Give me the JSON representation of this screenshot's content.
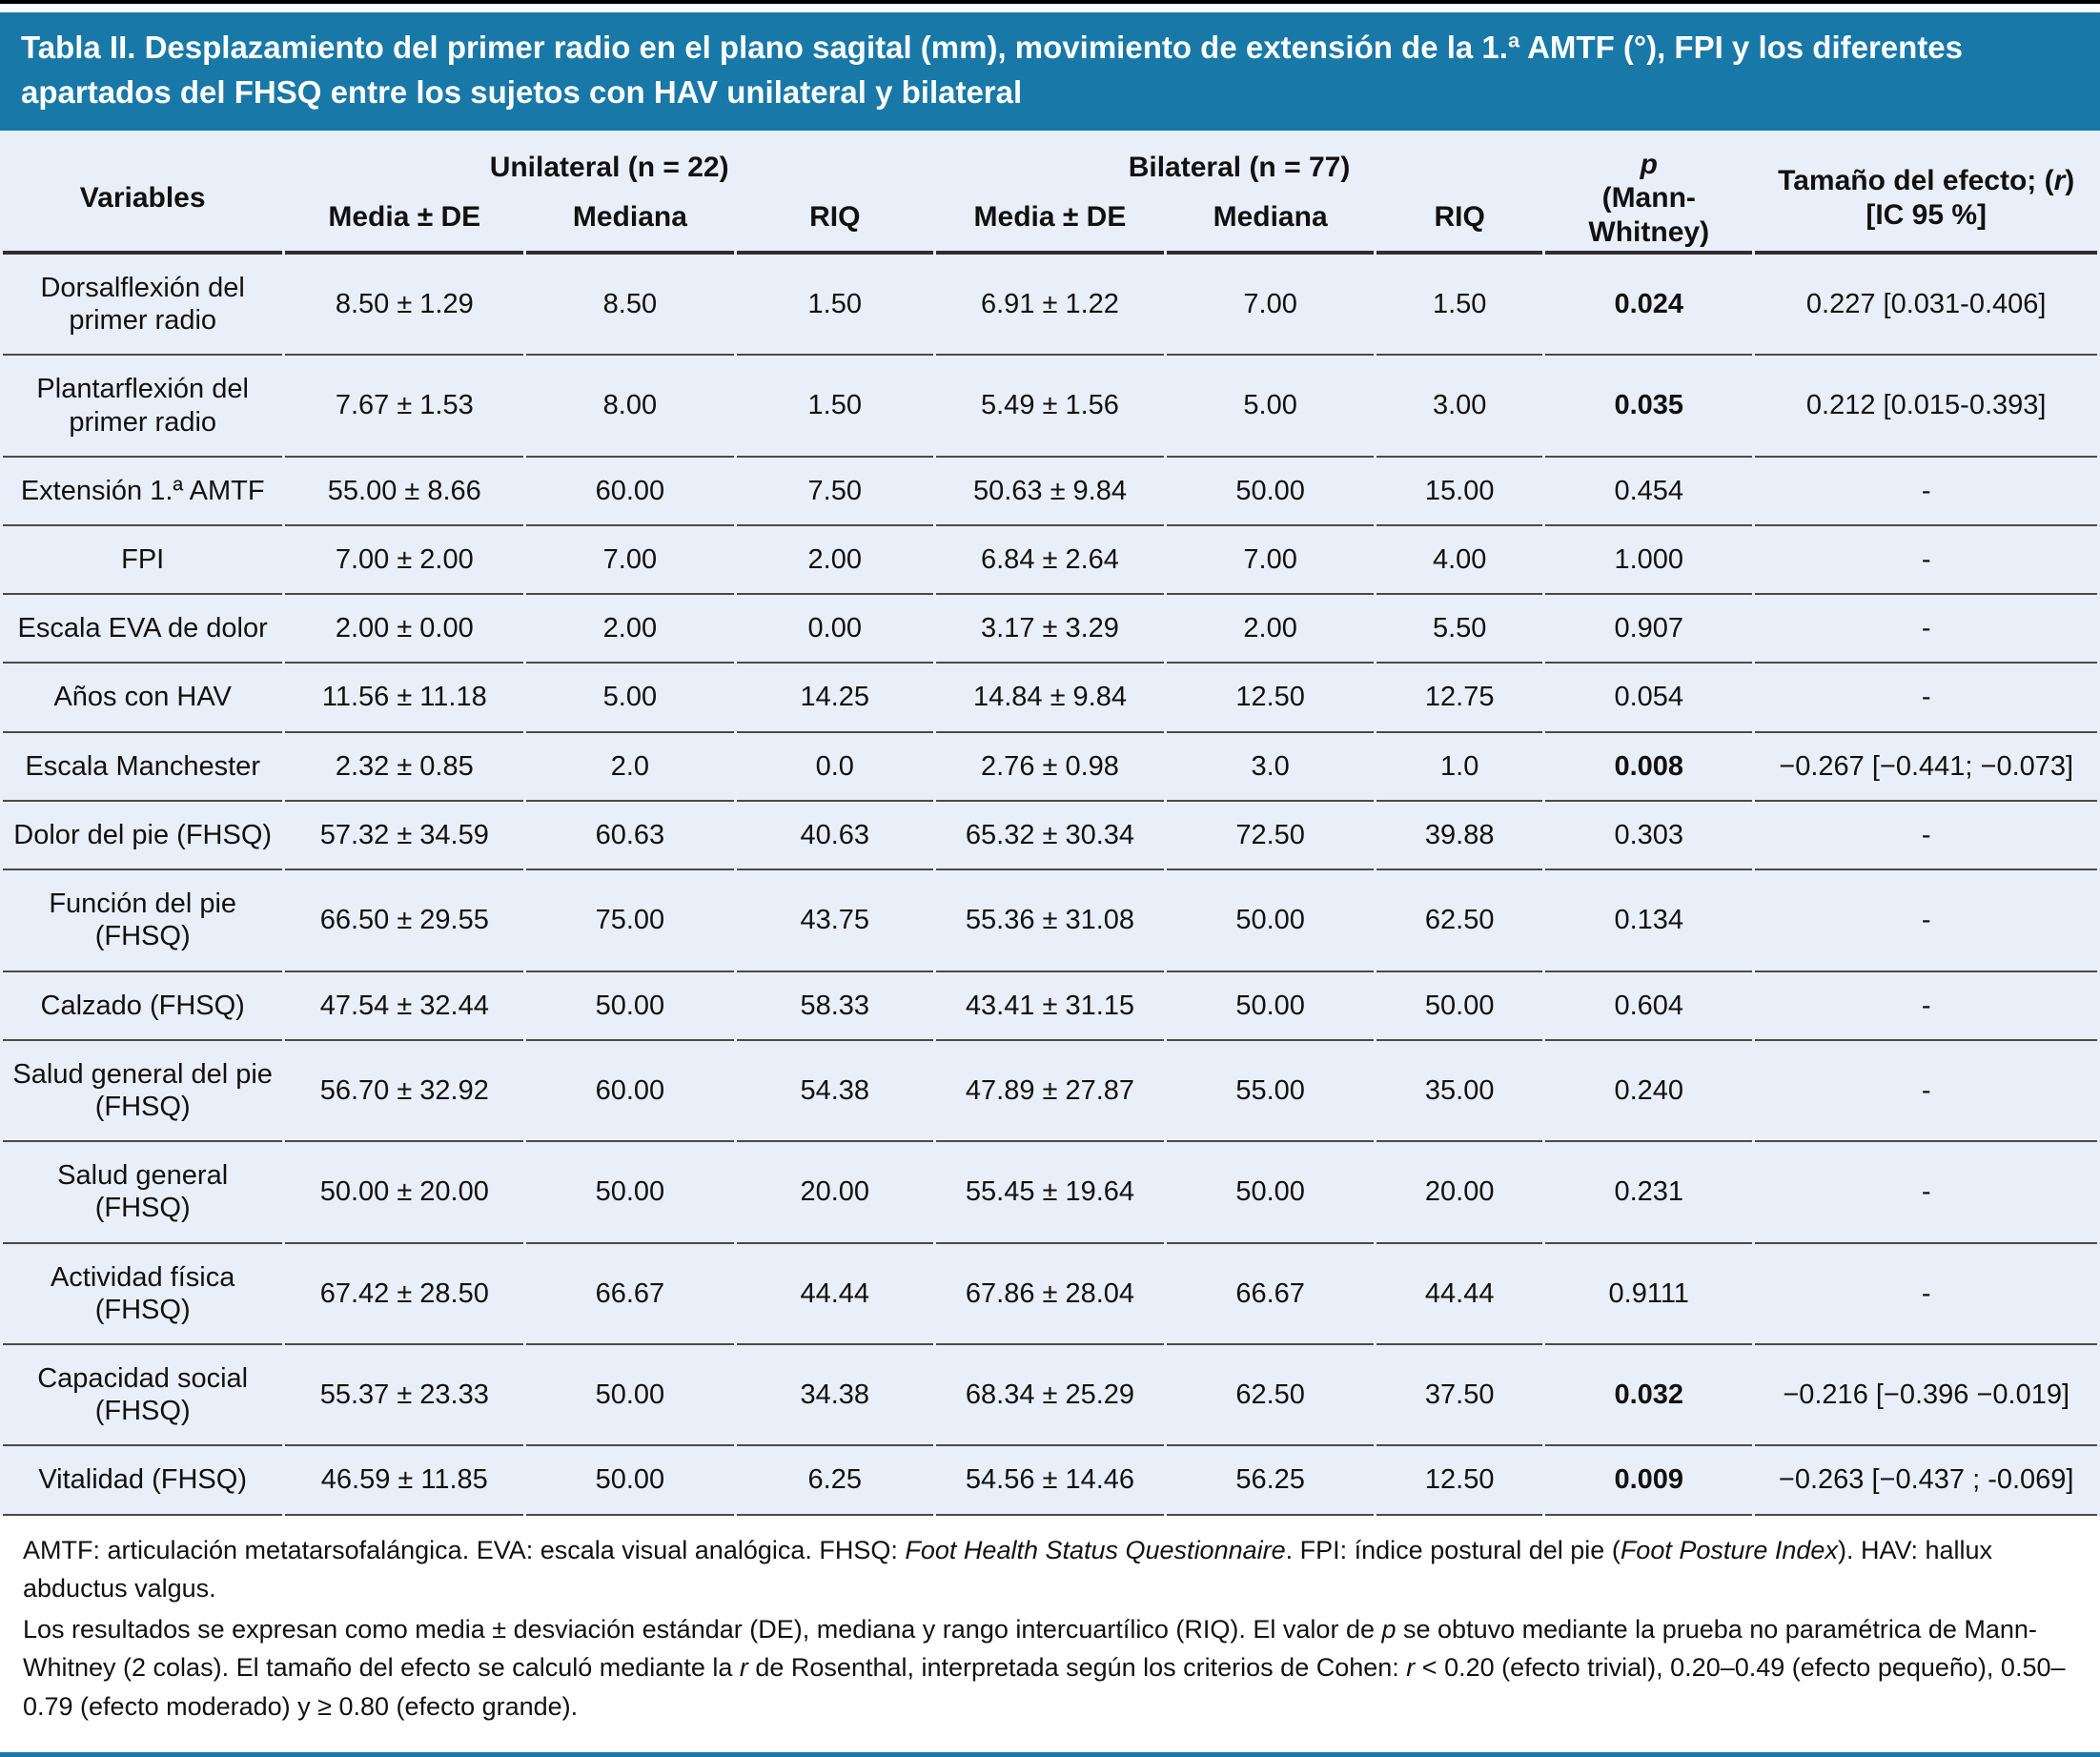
{
  "title": "Tabla II. Desplazamiento del primer radio en el plano sagital (mm), movimiento de extensión de la 1.ª AMTF (°), FPI y los diferentes apartados del FHSQ entre los sujetos con HAV unilateral y bilateral",
  "colors": {
    "header_bg": "#1878A8",
    "table_bg": "#E9EFF8",
    "rule": "#4a4a4a"
  },
  "table": {
    "headers": {
      "variables": "Variables",
      "unilateral_group": "Unilateral (n = 22)",
      "bilateral_group": "Bilateral (n = 77)",
      "p_symbol": "p",
      "p_sub": "(Mann-Whitney)",
      "effect_prefix": "Tamaño del efecto; (",
      "effect_r": "r",
      "effect_suffix": ")",
      "effect_sub": "[IC 95 %]"
    },
    "sub_headers": [
      "Media ± DE",
      "Mediana",
      "RIQ",
      "Media ± DE",
      "Mediana",
      "RIQ"
    ],
    "rows": [
      {
        "variable": "Dorsalflexión del primer radio",
        "u_media": "8.50 ± 1.29",
        "u_mediana": "8.50",
        "u_riq": "1.50",
        "b_media": "6.91 ± 1.22",
        "b_mediana": "7.00",
        "b_riq": "1.50",
        "p": "0.024",
        "p_bold": true,
        "effect": "0.227 [0.031-0.406]"
      },
      {
        "variable": "Plantarflexión del primer radio",
        "u_media": "7.67 ± 1.53",
        "u_mediana": "8.00",
        "u_riq": "1.50",
        "b_media": "5.49 ± 1.56",
        "b_mediana": "5.00",
        "b_riq": "3.00",
        "p": "0.035",
        "p_bold": true,
        "effect": "0.212 [0.015-0.393]"
      },
      {
        "variable": "Extensión 1.ª AMTF",
        "u_media": "55.00 ± 8.66",
        "u_mediana": "60.00",
        "u_riq": "7.50",
        "b_media": "50.63 ± 9.84",
        "b_mediana": "50.00",
        "b_riq": "15.00",
        "p": "0.454",
        "p_bold": false,
        "effect": "-"
      },
      {
        "variable": "FPI",
        "u_media": "7.00 ± 2.00",
        "u_mediana": "7.00",
        "u_riq": "2.00",
        "b_media": "6.84 ± 2.64",
        "b_mediana": "7.00",
        "b_riq": "4.00",
        "p": "1.000",
        "p_bold": false,
        "effect": "-"
      },
      {
        "variable": "Escala EVA de dolor",
        "u_media": "2.00 ± 0.00",
        "u_mediana": "2.00",
        "u_riq": "0.00",
        "b_media": "3.17 ± 3.29",
        "b_mediana": "2.00",
        "b_riq": "5.50",
        "p": "0.907",
        "p_bold": false,
        "effect": "-"
      },
      {
        "variable": "Años con HAV",
        "u_media": "11.56 ± 11.18",
        "u_mediana": "5.00",
        "u_riq": "14.25",
        "b_media": "14.84 ± 9.84",
        "b_mediana": "12.50",
        "b_riq": "12.75",
        "p": "0.054",
        "p_bold": false,
        "effect": "-"
      },
      {
        "variable": "Escala Manchester",
        "u_media": "2.32 ± 0.85",
        "u_mediana": "2.0",
        "u_riq": "0.0",
        "b_media": "2.76 ± 0.98",
        "b_mediana": "3.0",
        "b_riq": "1.0",
        "p": "0.008",
        "p_bold": true,
        "effect": "−0.267 [−0.441; −0.073]"
      },
      {
        "variable": "Dolor del pie (FHSQ)",
        "u_media": "57.32 ± 34.59",
        "u_mediana": "60.63",
        "u_riq": "40.63",
        "b_media": "65.32 ± 30.34",
        "b_mediana": "72.50",
        "b_riq": "39.88",
        "p": "0.303",
        "p_bold": false,
        "effect": "-"
      },
      {
        "variable": "Función del pie (FHSQ)",
        "u_media": "66.50 ± 29.55",
        "u_mediana": "75.00",
        "u_riq": "43.75",
        "b_media": "55.36 ± 31.08",
        "b_mediana": "50.00",
        "b_riq": "62.50",
        "p": "0.134",
        "p_bold": false,
        "effect": "-"
      },
      {
        "variable": "Calzado (FHSQ)",
        "u_media": "47.54 ± 32.44",
        "u_mediana": "50.00",
        "u_riq": "58.33",
        "b_media": "43.41 ± 31.15",
        "b_mediana": "50.00",
        "b_riq": "50.00",
        "p": "0.604",
        "p_bold": false,
        "effect": "-"
      },
      {
        "variable": "Salud general del pie (FHSQ)",
        "u_media": "56.70 ± 32.92",
        "u_mediana": "60.00",
        "u_riq": "54.38",
        "b_media": "47.89 ± 27.87",
        "b_mediana": "55.00",
        "b_riq": "35.00",
        "p": "0.240",
        "p_bold": false,
        "effect": "-"
      },
      {
        "variable": "Salud general (FHSQ)",
        "u_media": "50.00 ± 20.00",
        "u_mediana": "50.00",
        "u_riq": "20.00",
        "b_media": "55.45 ± 19.64",
        "b_mediana": "50.00",
        "b_riq": "20.00",
        "p": "0.231",
        "p_bold": false,
        "effect": "-"
      },
      {
        "variable": "Actividad física (FHSQ)",
        "u_media": "67.42 ± 28.50",
        "u_mediana": "66.67",
        "u_riq": "44.44",
        "b_media": "67.86 ± 28.04",
        "b_mediana": "66.67",
        "b_riq": "44.44",
        "p": "0.9111",
        "p_bold": false,
        "effect": "-"
      },
      {
        "variable": "Capacidad social (FHSQ)",
        "u_media": "55.37 ± 23.33",
        "u_mediana": "50.00",
        "u_riq": "34.38",
        "b_media": "68.34 ± 25.29",
        "b_mediana": "62.50",
        "b_riq": "37.50",
        "p": "0.032",
        "p_bold": true,
        "effect": "−0.216 [−0.396 −0.019]"
      },
      {
        "variable": "Vitalidad (FHSQ)",
        "u_media": "46.59 ± 11.85",
        "u_mediana": "50.00",
        "u_riq": "6.25",
        "b_media": "54.56 ± 14.46",
        "b_mediana": "56.25",
        "b_riq": "12.50",
        "p": "0.009",
        "p_bold": true,
        "effect": "−0.263 [−0.437 ; -0.069]"
      }
    ]
  },
  "footnotes": {
    "f1": {
      "s1": "AMTF: articulación metatarsofalángica. EVA: escala visual analógica. FHSQ: ",
      "i1": "Foot Health Status Questionnaire",
      "s2": ". FPI: índice postural del pie (",
      "i2": "Foot Posture Index",
      "s3": "). HAV: hallux abductus valgus."
    },
    "f2": {
      "s1": "Los resultados se expresan como media ± desviación estándar (DE), mediana y rango intercuartílico (RIQ). El valor de ",
      "i1": "p",
      "s2": " se obtuvo mediante la prueba no paramétrica de Mann-Whitney (2 colas). El tamaño del efecto se calculó mediante la ",
      "i2": "r",
      "s3": " de Rosenthal, interpretada según los criterios de Cohen: ",
      "i3": "r",
      "s4": " < 0.20 (efecto trivial), 0.20–0.49 (efecto pequeño), 0.50–0.79 (efecto moderado) y ≥ 0.80 (efecto grande)."
    }
  }
}
